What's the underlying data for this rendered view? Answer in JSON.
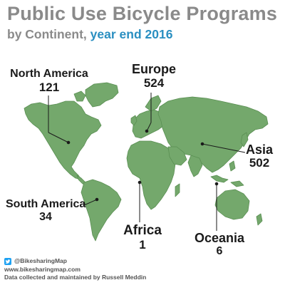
{
  "title": "Public Use Bicycle Programs",
  "subtitle": {
    "prefix": "by Continent, ",
    "year": "year end 2016"
  },
  "colors": {
    "land": "#74a86c",
    "coast": "#5a8f53",
    "title": "#8a8a8a",
    "year": "#2a8fc1",
    "label": "#1a1a1a"
  },
  "continents": {
    "north_america": {
      "name": "North America",
      "count": "121"
    },
    "europe": {
      "name": "Europe",
      "count": "524"
    },
    "asia": {
      "name": "Asia",
      "count": "502"
    },
    "south_america": {
      "name": "South America",
      "count": "34"
    },
    "africa": {
      "name": "Africa",
      "count": "1"
    },
    "oceania": {
      "name": "Oceania",
      "count": "6"
    }
  },
  "footer": {
    "twitter_handle": "@BikesharingMap",
    "website": "www.bikesharingmap.com",
    "credit": "Data collected and maintained by Russell Meddin"
  }
}
